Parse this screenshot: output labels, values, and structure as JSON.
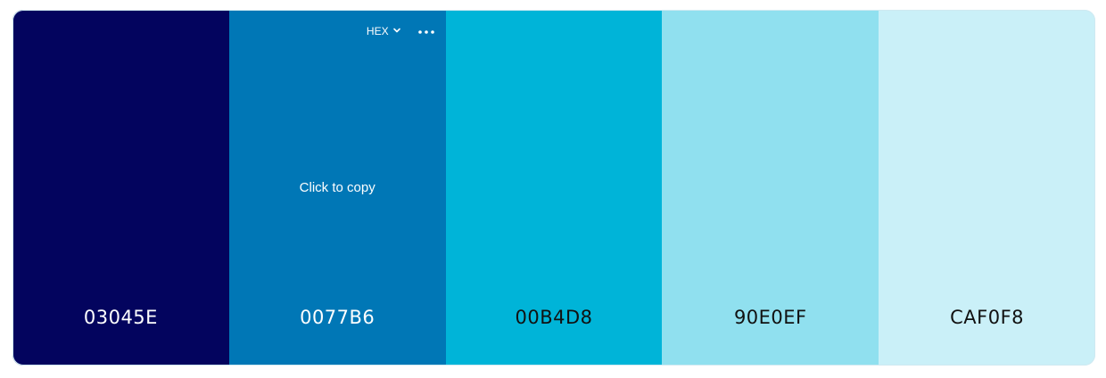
{
  "palette": {
    "format_label": "HEX",
    "copy_hint": "Click to copy",
    "swatches": [
      {
        "hex": "03045E",
        "color": "#03045E",
        "tone": "dark"
      },
      {
        "hex": "0077B6",
        "color": "#0077B6",
        "tone": "dark"
      },
      {
        "hex": "00B4D8",
        "color": "#00B4D8",
        "tone": "light"
      },
      {
        "hex": "90E0EF",
        "color": "#90E0EF",
        "tone": "light"
      },
      {
        "hex": "CAF0F8",
        "color": "#CAF0F8",
        "tone": "light"
      }
    ]
  },
  "icons": {
    "format_dropdown": "chevron-down-icon",
    "more_options": "more-horizontal-icon"
  }
}
